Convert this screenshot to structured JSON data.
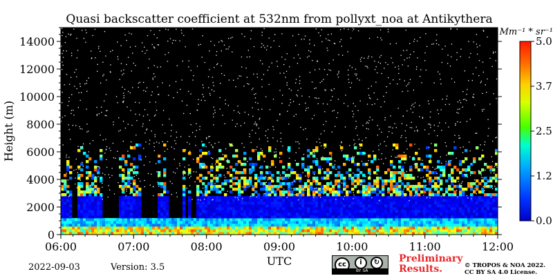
{
  "chart_data": {
    "type": "heatmap",
    "title": "Quasi backscatter coefficient at 532nm from pollyxt_noa at Antikythera",
    "xlabel": "UTC",
    "ylabel": "Height (m)",
    "x_ticks": [
      "06:00",
      "07:00",
      "08:00",
      "09:00",
      "10:00",
      "11:00",
      "12:00"
    ],
    "y_ticks": [
      0,
      2000,
      4000,
      6000,
      8000,
      10000,
      12000,
      14000
    ],
    "xlim_hours": [
      6,
      12
    ],
    "ylim": [
      0,
      15000
    ],
    "colorbar": {
      "unit_label": "Mm⁻¹ * sr⁻¹",
      "ticks": [
        "0.0",
        "1.2",
        "2.5",
        "3.7",
        "5.0"
      ],
      "range": [
        0,
        5
      ],
      "colormap": "jet",
      "under_color": "#000000"
    },
    "layers": [
      {
        "from_m": 0,
        "to_m": 500,
        "value": 3.0
      },
      {
        "from_m": 500,
        "to_m": 1200,
        "value": 1.4
      },
      {
        "from_m": 1200,
        "to_m": 2800,
        "value": 0.3
      },
      {
        "from_m": 2800,
        "to_m": 6500,
        "value": 1.6
      },
      {
        "from_m": 6500,
        "to_m": 15000,
        "value": 0.0
      }
    ],
    "cloud_gaps_hours": [
      [
        6.12,
        6.2
      ],
      [
        6.55,
        6.78
      ],
      [
        7.05,
        7.3
      ],
      [
        7.45,
        7.85
      ]
    ],
    "noise": "white speckle above aerosol layer"
  },
  "footer": {
    "date": "2022-09-03",
    "version": "Version: 3.5",
    "preliminary_line1": "Preliminary",
    "preliminary_line2": "Results.",
    "copyright_line1": "© TROPOS & NOA 2022.",
    "copyright_line2": "CC BY SA 4.0 License.",
    "cc_badge": {
      "strip": "BY   SA",
      "symbol": "cc"
    }
  },
  "colors": {
    "background": "#000000",
    "text": "#000000",
    "preliminary": "#e8262a"
  }
}
